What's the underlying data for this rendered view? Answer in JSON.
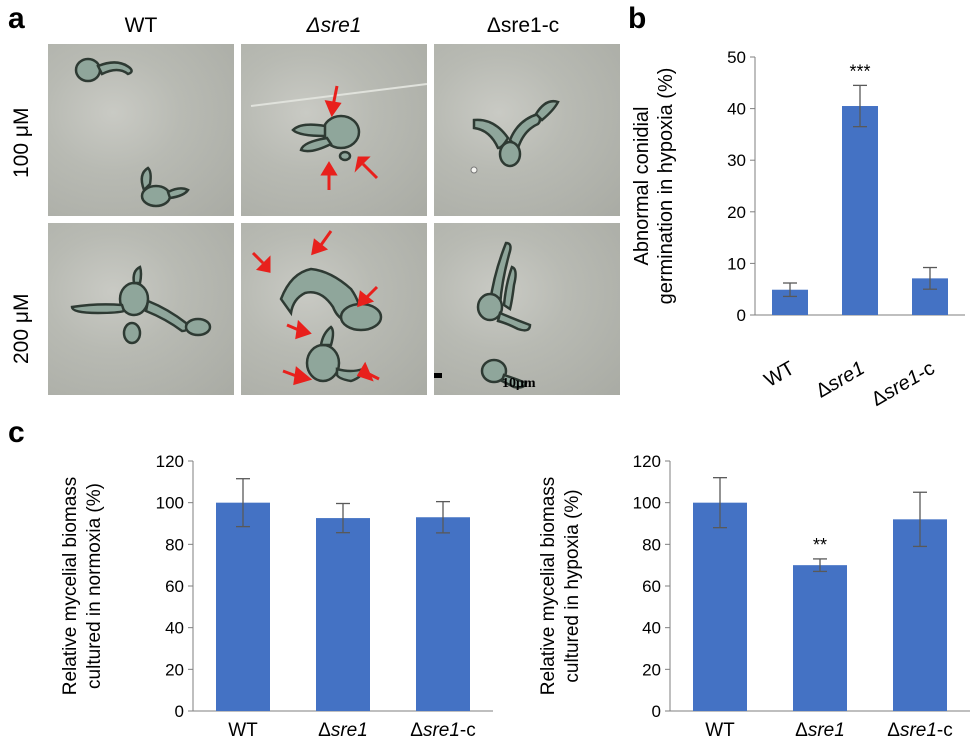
{
  "panel_a": {
    "letter": "a",
    "columns": [
      "WT",
      "Δsre1",
      "Δsre1-c"
    ],
    "rows": [
      "100 μM",
      "200 μM"
    ],
    "scale_bar": "10μm"
  },
  "panel_b": {
    "letter": "b"
  },
  "panel_c": {
    "letter": "c"
  },
  "colors": {
    "bar": "#4472c4",
    "arrow": "#e8201c"
  },
  "chart_data": [
    {
      "id": "b",
      "type": "bar",
      "categories": [
        "WT",
        "Δsre1",
        "Δsre1-c"
      ],
      "values": [
        4.9,
        40.5,
        7.1
      ],
      "errors": [
        1.3,
        4.0,
        2.1
      ],
      "annotations": [
        "",
        "***",
        ""
      ],
      "ylabel_lines": [
        "Abnormal conidial",
        "germination in hypoxia (%)"
      ],
      "ylim": [
        0,
        50
      ],
      "yticks": [
        0,
        10,
        20,
        30,
        40,
        50
      ],
      "grid": false
    },
    {
      "id": "c1",
      "type": "bar",
      "categories": [
        "WT",
        "Δsre1",
        "Δsre1-c"
      ],
      "values": [
        100,
        92.6,
        93.0
      ],
      "errors": [
        11.5,
        7.0,
        7.5
      ],
      "annotations": [
        "",
        "",
        ""
      ],
      "ylabel_lines": [
        "Relative mycelial biomass",
        "cultured in normoxia (%)"
      ],
      "ylim": [
        0,
        120
      ],
      "yticks": [
        0,
        20,
        40,
        60,
        80,
        100,
        120
      ],
      "grid": false
    },
    {
      "id": "c2",
      "type": "bar",
      "categories": [
        "WT",
        "Δsre1",
        "Δsre1-c"
      ],
      "values": [
        100,
        70.0,
        92.0
      ],
      "errors": [
        12.0,
        3.0,
        13.0
      ],
      "annotations": [
        "",
        "**",
        ""
      ],
      "ylabel_lines": [
        "Relative mycelial biomass",
        "cultured in hypoxia (%)"
      ],
      "ylim": [
        0,
        120
      ],
      "yticks": [
        0,
        20,
        40,
        60,
        80,
        100,
        120
      ],
      "grid": false
    }
  ]
}
